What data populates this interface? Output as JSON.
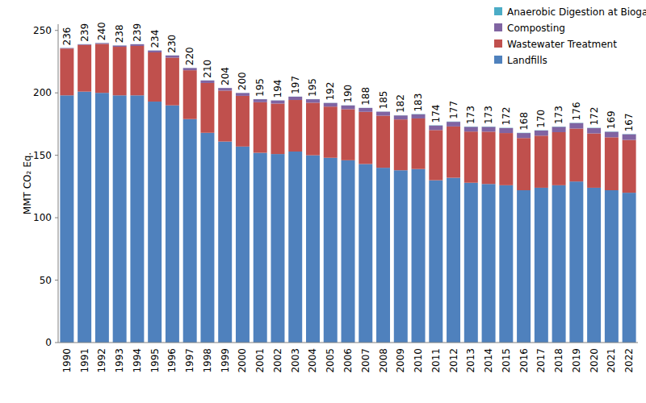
{
  "chart_data": {
    "type": "bar",
    "stacked": true,
    "legend": "top-right",
    "y_label": "MMT CO₂ Eq.",
    "categories": [
      "1990",
      "1991",
      "1992",
      "1993",
      "1994",
      "1995",
      "1996",
      "1997",
      "1998",
      "1999",
      "2000",
      "2001",
      "2002",
      "2003",
      "2004",
      "2005",
      "2006",
      "2007",
      "2008",
      "2009",
      "2010",
      "2011",
      "2012",
      "2013",
      "2014",
      "2015",
      "2016",
      "2017",
      "2018",
      "2019",
      "2020",
      "2021",
      "2022"
    ],
    "series": [
      {
        "name": "Landfills",
        "color": "#4f81bd",
        "values": [
          198,
          201,
          200,
          198,
          198,
          193,
          190,
          179,
          168,
          161,
          157,
          152,
          151,
          153,
          150,
          148,
          146,
          143,
          140,
          138,
          139,
          130,
          132,
          128,
          127,
          126,
          122,
          124,
          126,
          129,
          124,
          122,
          120
        ]
      },
      {
        "name": "Wastewater Treatment",
        "color": "#c0504d",
        "values": [
          37.5,
          37.4,
          39.2,
          38.9,
          39.6,
          39.4,
          38.2,
          39.1,
          39.9,
          40.8,
          40.6,
          40.5,
          40.4,
          41.3,
          42.1,
          41.0,
          40.9,
          41.8,
          41.7,
          40.7,
          40.5,
          40.2,
          41.1,
          41.0,
          41.9,
          41.8,
          41.8,
          41.7,
          42.5,
          42.4,
          43.5,
          42.4,
          42.3
        ]
      },
      {
        "name": "Composting",
        "color": "#8064a2",
        "values": [
          0.4,
          0.5,
          0.7,
          1.0,
          1.3,
          1.5,
          1.7,
          1.8,
          2.0,
          2.1,
          2.3,
          2.4,
          2.5,
          2.6,
          2.8,
          2.9,
          3.0,
          3.1,
          3.2,
          3.2,
          3.3,
          3.6,
          3.7,
          3.8,
          3.9,
          4.0,
          4.0,
          4.1,
          4.3,
          4.4,
          4.3,
          4.4,
          4.5
        ]
      },
      {
        "name": "Anaerobic Digestion at Biogas Facilities",
        "color": "#4bacc6",
        "values": [
          0.1,
          0.1,
          0.1,
          0.1,
          0.1,
          0.1,
          0.1,
          0.1,
          0.1,
          0.1,
          0.1,
          0.1,
          0.1,
          0.1,
          0.1,
          0.1,
          0.1,
          0.1,
          0.1,
          0.1,
          0.2,
          0.2,
          0.2,
          0.2,
          0.2,
          0.2,
          0.2,
          0.2,
          0.2,
          0.2,
          0.2,
          0.2,
          0.2
        ]
      }
    ],
    "totals": [
      236,
      239,
      240,
      238,
      239,
      234,
      230,
      220,
      210,
      204,
      200,
      195,
      194,
      197,
      195,
      192,
      190,
      188,
      185,
      182,
      183,
      174,
      177,
      173,
      173,
      172,
      168,
      170,
      173,
      176,
      172,
      169,
      167
    ],
    "ylim": [
      0,
      255
    ],
    "yticks": [
      0,
      50,
      100,
      150,
      200,
      250
    ],
    "grid": false
  }
}
